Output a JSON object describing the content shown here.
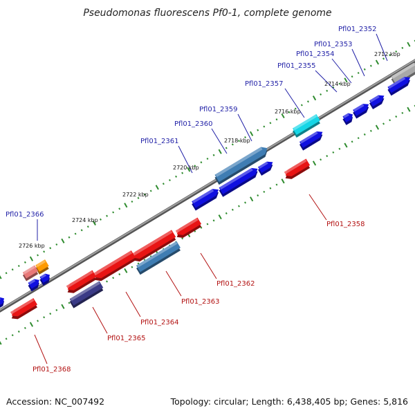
{
  "title": "Pseudomonas fluorescens Pf0-1, complete genome",
  "accession_text": "Accession: NC_007492",
  "summary_text": "Topology: circular; Length: 6,438,405 bp; Genes: 5,816",
  "colors": {
    "backbone": "#7d7d7d",
    "tick": "#2e8b2e",
    "forward_label": "#1f1fa6",
    "reverse_label": "#b21010",
    "gene_blue": "#1010e0",
    "gene_red": "#e81414",
    "gene_steel": "#3f7db3",
    "gene_cyan": "#16d6e6",
    "gene_gray": "#a8a8a8",
    "gene_pink": "#e87878",
    "gene_orange": "#ff9a00",
    "gene_purple": "#3a3a86"
  },
  "tick_labels": [
    "2712 kbp",
    "2714 kbp",
    "2716 kbp",
    "2718 kbp",
    "2720 kbp",
    "2722 kbp",
    "2724 kbp",
    "2726 kbp"
  ],
  "forward_gene_labels": [
    "Pfl01_2352",
    "Pfl01_2353",
    "Pfl01_2354",
    "Pfl01_2355",
    "Pfl01_2357",
    "Pfl01_2359",
    "Pfl01_2360",
    "Pfl01_2361",
    "Pfl01_2366"
  ],
  "reverse_gene_labels": [
    "Pfl01_2358",
    "Pfl01_2362",
    "Pfl01_2363",
    "Pfl01_2364",
    "Pfl01_2365",
    "Pfl01_2368"
  ]
}
